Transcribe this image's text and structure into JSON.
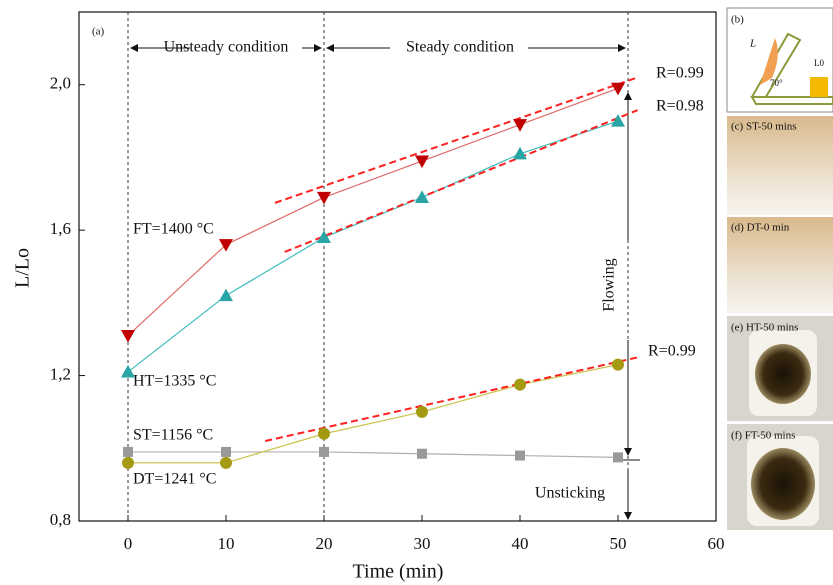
{
  "chart_data": {
    "type": "line",
    "x_label": "Time (min)",
    "y_label": "L/Lo",
    "panel_label": "(a)",
    "x": [
      0,
      10,
      20,
      30,
      40,
      50
    ],
    "series": [
      {
        "name": "FT=1400 °C",
        "color": "#c00000",
        "line_color": "#e06a6a",
        "marker": "triangle-down",
        "values": [
          1.31,
          1.56,
          1.69,
          1.79,
          1.89,
          1.99
        ]
      },
      {
        "name": "HT=1335 °C",
        "color": "#2aa5a5",
        "line_color": "#3fbcbc",
        "marker": "triangle-up",
        "values": [
          1.21,
          1.42,
          1.58,
          1.69,
          1.81,
          1.9
        ]
      },
      {
        "name": "ST=1156 °C",
        "color": "#999999",
        "line_color": "#b0b0b0",
        "marker": "square",
        "values": [
          0.99,
          0.99,
          0.99,
          0.985,
          0.98,
          0.975
        ]
      },
      {
        "name": "DT=1241 °C",
        "color": "#a39a12",
        "line_color": "#c9c24a",
        "marker": "circle",
        "values": [
          0.96,
          0.96,
          1.04,
          1.1,
          1.175,
          1.23
        ]
      }
    ],
    "fit_lines": [
      {
        "label": "R=0.99",
        "color": "#ff2020",
        "x": [
          15,
          52
        ],
        "values": [
          1.675,
          2.02
        ]
      },
      {
        "label": "R=0.98",
        "color": "#ff2020",
        "x": [
          16,
          52
        ],
        "values": [
          1.54,
          1.93
        ]
      },
      {
        "label": "R=0.99",
        "color": "#ff2020",
        "x": [
          14,
          52
        ],
        "values": [
          1.02,
          1.25
        ]
      }
    ],
    "annotations": [
      "Unsteady condition",
      "Steady condition",
      "Flowing",
      "Unsticking"
    ],
    "xlim": [
      -5,
      60
    ],
    "xticks": [
      0,
      10,
      20,
      30,
      40,
      50,
      60
    ],
    "ylim": [
      0.8,
      2.2
    ],
    "yticks": [
      {
        "value": 0.8,
        "label": "0,8"
      },
      {
        "value": 1.2,
        "label": "1,2"
      },
      {
        "value": 1.6,
        "label": "1,6"
      },
      {
        "value": 2.0,
        "label": "2,0"
      }
    ]
  },
  "panels": [
    {
      "label": "(b)",
      "parts": [
        "L",
        "70°",
        "L0"
      ]
    },
    {
      "label": "(c) ST-50 mins"
    },
    {
      "label": "(d) DT-0 min"
    },
    {
      "label": "(e) HT-50 mins"
    },
    {
      "label": "(f) FT-50 mins"
    }
  ]
}
